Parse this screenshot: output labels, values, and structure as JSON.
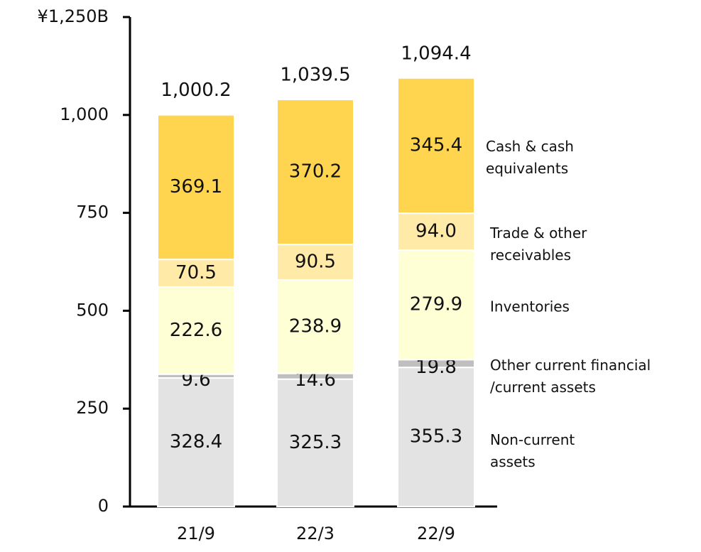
{
  "chart_data": {
    "type": "stacked_bar",
    "categories": [
      "21/9",
      "22/3",
      "22/9"
    ],
    "series": [
      {
        "name": "Non-current assets",
        "color": "#e3e3e3",
        "values": [
          328.4,
          325.3,
          355.3
        ]
      },
      {
        "name": "Other current financial /current assets",
        "color": "#bfbfbf",
        "values": [
          9.6,
          14.6,
          19.8
        ]
      },
      {
        "name": "Inventories",
        "color": "#ffffd6",
        "values": [
          222.6,
          238.9,
          279.9
        ]
      },
      {
        "name": "Trade & other receivables",
        "color": "#ffeaa8",
        "values": [
          70.5,
          90.5,
          94.0
        ],
        "value_labels": [
          "70.5",
          "90.5",
          "94.0"
        ]
      },
      {
        "name": "Cash & cash equivalents",
        "color": "#ffd54f",
        "values": [
          369.1,
          370.2,
          345.4
        ]
      }
    ],
    "totals": {
      "values": [
        1000.2,
        1039.5,
        1094.4
      ],
      "value_labels": [
        "1,000.2",
        "1,039.5",
        "1,094.4"
      ]
    },
    "ylim": [
      0,
      1250
    ],
    "yticks": [
      0,
      250,
      500,
      750,
      {
        "value": 1000,
        "label": "1,000"
      },
      {
        "value": 1250,
        "label": "¥1,250B"
      }
    ]
  }
}
